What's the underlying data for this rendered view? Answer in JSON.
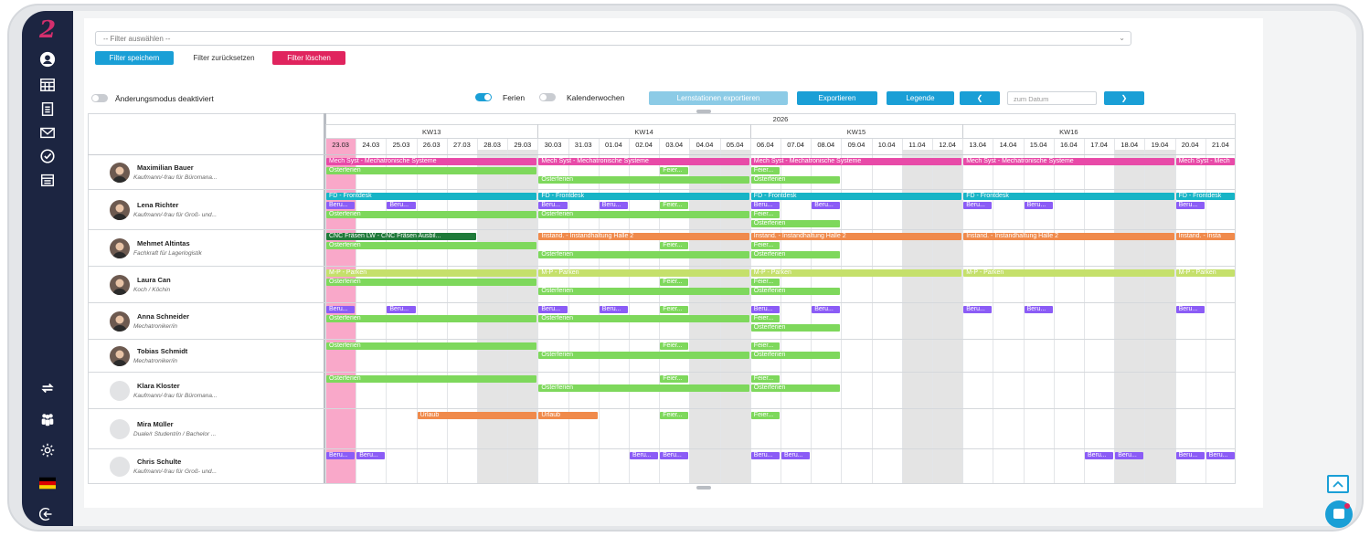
{
  "filter": {
    "placeholder": "-- Filter auswählen --",
    "save_label": "Filter speichern",
    "reset_label": "Filter zurücksetzen",
    "delete_label": "Filter löschen"
  },
  "toolbar": {
    "change_mode_label": "Änderungsmodus deaktiviert",
    "ferien_label": "Ferien",
    "kalenderwochen_label": "Kalenderwochen",
    "export_stations_label": "Lernstationen exportieren",
    "export_label": "Exportieren",
    "legend_label": "Legende",
    "prev_label": "❮",
    "date_placeholder": "zum Datum",
    "next_label": "❯"
  },
  "calendar": {
    "year": "2026",
    "weeks": [
      "KW13",
      "KW14",
      "KW15",
      "KW16"
    ],
    "days": [
      "23.03",
      "24.03",
      "25.03",
      "26.03",
      "27.03",
      "28.03",
      "29.03",
      "30.03",
      "31.03",
      "01.04",
      "02.04",
      "03.04",
      "04.04",
      "05.04",
      "06.04",
      "07.04",
      "08.04",
      "09.04",
      "10.04",
      "11.04",
      "12.04",
      "13.04",
      "14.04",
      "15.04",
      "16.04",
      "17.04",
      "18.04",
      "19.04",
      "20.04",
      "21.04"
    ],
    "weekend_indices": [
      5,
      6,
      12,
      13,
      19,
      20,
      26,
      27
    ],
    "today_index": 0
  },
  "people": [
    {
      "name": "Maximilian Bauer",
      "role": "Kaufmann/-frau für Büromana...",
      "photo": true
    },
    {
      "name": "Lena Richter",
      "role": "Kaufmann/-frau für Groß- und...",
      "photo": true
    },
    {
      "name": "Mehmet Altintas",
      "role": "Fachkraft für Lagerlogistik",
      "photo": true
    },
    {
      "name": "Laura Can",
      "role": "Koch / Köchin",
      "photo": true
    },
    {
      "name": "Anna Schneider",
      "role": "Mechatroniker/in",
      "photo": true
    },
    {
      "name": "Tobias Schmidt",
      "role": "Mechatroniker/in",
      "photo": true
    },
    {
      "name": "Klara Kloster",
      "role": "Kaufmann/-frau für Büromana...",
      "photo": false
    },
    {
      "name": "Mira Müller",
      "role": "Duale/r Student/in / Bachelor ...",
      "photo": false
    },
    {
      "name": "Chris Schulte",
      "role": "Kaufmann/-frau für Groß- und...",
      "photo": false
    }
  ],
  "events": [
    {
      "row": 0,
      "lane": 0,
      "start": 0,
      "end": 7,
      "label": "Mech Syst - Mechatronische Systeme",
      "color": "#e84aa8"
    },
    {
      "row": 0,
      "lane": 0,
      "start": 7,
      "end": 14,
      "label": "Mech Syst - Mechatronische Systeme",
      "color": "#e84aa8"
    },
    {
      "row": 0,
      "lane": 0,
      "start": 14,
      "end": 21,
      "label": "Mech Syst - Mechatronische Systeme",
      "color": "#e84aa8"
    },
    {
      "row": 0,
      "lane": 0,
      "start": 21,
      "end": 28,
      "label": "Mech Syst - Mechatronische Systeme",
      "color": "#e84aa8"
    },
    {
      "row": 0,
      "lane": 0,
      "start": 28,
      "end": 30,
      "label": "Mech Syst - Mech",
      "color": "#e84aa8"
    },
    {
      "row": 0,
      "lane": 1,
      "start": 0,
      "end": 7,
      "label": "Osterferien",
      "color": "#7ed85c"
    },
    {
      "row": 0,
      "lane": 1,
      "start": 11,
      "end": 12,
      "label": "Feier...",
      "color": "#7ed85c"
    },
    {
      "row": 0,
      "lane": 1,
      "start": 14,
      "end": 15,
      "label": "Feier...",
      "color": "#7ed85c"
    },
    {
      "row": 0,
      "lane": 2,
      "start": 7,
      "end": 14,
      "label": "Osterferien",
      "color": "#7ed85c"
    },
    {
      "row": 0,
      "lane": 2,
      "start": 14,
      "end": 17,
      "label": "Osterferien",
      "color": "#7ed85c"
    },
    {
      "row": 1,
      "lane": 0,
      "start": 0,
      "end": 7,
      "label": "FD - Frontdesk",
      "color": "#17b4c6"
    },
    {
      "row": 1,
      "lane": 0,
      "start": 7,
      "end": 14,
      "label": "FD - Frontdesk",
      "color": "#17b4c6"
    },
    {
      "row": 1,
      "lane": 0,
      "start": 14,
      "end": 21,
      "label": "FD - Frontdesk",
      "color": "#17b4c6"
    },
    {
      "row": 1,
      "lane": 0,
      "start": 21,
      "end": 28,
      "label": "FD - Frontdesk",
      "color": "#17b4c6"
    },
    {
      "row": 1,
      "lane": 0,
      "start": 28,
      "end": 30,
      "label": "FD - Frontdesk",
      "color": "#17b4c6"
    },
    {
      "row": 1,
      "lane": 1,
      "start": 0,
      "end": 1,
      "label": "Beru...",
      "color": "#8b5cf6"
    },
    {
      "row": 1,
      "lane": 1,
      "start": 2,
      "end": 3,
      "label": "Beru...",
      "color": "#8b5cf6"
    },
    {
      "row": 1,
      "lane": 1,
      "start": 7,
      "end": 8,
      "label": "Beru...",
      "color": "#8b5cf6"
    },
    {
      "row": 1,
      "lane": 1,
      "start": 9,
      "end": 10,
      "label": "Beru...",
      "color": "#8b5cf6"
    },
    {
      "row": 1,
      "lane": 1,
      "start": 11,
      "end": 12,
      "label": "Feier...",
      "color": "#7ed85c"
    },
    {
      "row": 1,
      "lane": 1,
      "start": 14,
      "end": 15,
      "label": "Beru...",
      "color": "#8b5cf6"
    },
    {
      "row": 1,
      "lane": 1,
      "start": 16,
      "end": 17,
      "label": "Beru...",
      "color": "#8b5cf6"
    },
    {
      "row": 1,
      "lane": 1,
      "start": 21,
      "end": 22,
      "label": "Beru...",
      "color": "#8b5cf6"
    },
    {
      "row": 1,
      "lane": 1,
      "start": 23,
      "end": 24,
      "label": "Beru...",
      "color": "#8b5cf6"
    },
    {
      "row": 1,
      "lane": 1,
      "start": 28,
      "end": 29,
      "label": "Beru...",
      "color": "#8b5cf6"
    },
    {
      "row": 1,
      "lane": 2,
      "start": 0,
      "end": 7,
      "label": "Osterferien",
      "color": "#7ed85c"
    },
    {
      "row": 1,
      "lane": 2,
      "start": 7,
      "end": 14,
      "label": "Osterferien",
      "color": "#7ed85c"
    },
    {
      "row": 1,
      "lane": 2,
      "start": 14,
      "end": 15,
      "label": "Feier...",
      "color": "#7ed85c"
    },
    {
      "row": 1,
      "lane": 3,
      "start": 14,
      "end": 17,
      "label": "Osterferien",
      "color": "#7ed85c"
    },
    {
      "row": 2,
      "lane": 0,
      "start": 0,
      "end": 5,
      "label": "CNC Fräsen LW - CNC Fräsen Ausbil...",
      "color": "#1f7a3a"
    },
    {
      "row": 2,
      "lane": 0,
      "start": 7,
      "end": 14,
      "label": "Instand. - Instandhaltung Halle 2",
      "color": "#f08a4b"
    },
    {
      "row": 2,
      "lane": 0,
      "start": 14,
      "end": 21,
      "label": "Instand. - Instandhaltung Halle 2",
      "color": "#f08a4b"
    },
    {
      "row": 2,
      "lane": 0,
      "start": 21,
      "end": 28,
      "label": "Instand. - Instandhaltung Halle 2",
      "color": "#f08a4b"
    },
    {
      "row": 2,
      "lane": 0,
      "start": 28,
      "end": 30,
      "label": "Instand. - Insta",
      "color": "#f08a4b"
    },
    {
      "row": 2,
      "lane": 1,
      "start": 0,
      "end": 7,
      "label": "Osterferien",
      "color": "#7ed85c"
    },
    {
      "row": 2,
      "lane": 1,
      "start": 11,
      "end": 12,
      "label": "Feier...",
      "color": "#7ed85c"
    },
    {
      "row": 2,
      "lane": 1,
      "start": 14,
      "end": 15,
      "label": "Feier...",
      "color": "#7ed85c"
    },
    {
      "row": 2,
      "lane": 2,
      "start": 7,
      "end": 14,
      "label": "Osterferien",
      "color": "#7ed85c"
    },
    {
      "row": 2,
      "lane": 2,
      "start": 14,
      "end": 17,
      "label": "Osterferien",
      "color": "#7ed85c"
    },
    {
      "row": 3,
      "lane": 0,
      "start": 0,
      "end": 7,
      "label": "M-P - Parken",
      "color": "#c5e06b"
    },
    {
      "row": 3,
      "lane": 0,
      "start": 7,
      "end": 14,
      "label": "M-P - Parken",
      "color": "#c5e06b"
    },
    {
      "row": 3,
      "lane": 0,
      "start": 14,
      "end": 21,
      "label": "M-P - Parken",
      "color": "#c5e06b"
    },
    {
      "row": 3,
      "lane": 0,
      "start": 21,
      "end": 28,
      "label": "M-P - Parken",
      "color": "#c5e06b"
    },
    {
      "row": 3,
      "lane": 0,
      "start": 28,
      "end": 30,
      "label": "M-P - Parken",
      "color": "#c5e06b"
    },
    {
      "row": 3,
      "lane": 1,
      "start": 0,
      "end": 7,
      "label": "Osterferien",
      "color": "#7ed85c"
    },
    {
      "row": 3,
      "lane": 1,
      "start": 11,
      "end": 12,
      "label": "Feier...",
      "color": "#7ed85c"
    },
    {
      "row": 3,
      "lane": 1,
      "start": 14,
      "end": 15,
      "label": "Feier...",
      "color": "#7ed85c"
    },
    {
      "row": 3,
      "lane": 2,
      "start": 7,
      "end": 14,
      "label": "Osterferien",
      "color": "#7ed85c"
    },
    {
      "row": 3,
      "lane": 2,
      "start": 14,
      "end": 17,
      "label": "Osterferien",
      "color": "#7ed85c"
    },
    {
      "row": 4,
      "lane": 0,
      "start": 0,
      "end": 1,
      "label": "Beru...",
      "color": "#8b5cf6"
    },
    {
      "row": 4,
      "lane": 0,
      "start": 2,
      "end": 3,
      "label": "Beru...",
      "color": "#8b5cf6"
    },
    {
      "row": 4,
      "lane": 0,
      "start": 7,
      "end": 8,
      "label": "Beru...",
      "color": "#8b5cf6"
    },
    {
      "row": 4,
      "lane": 0,
      "start": 9,
      "end": 10,
      "label": "Beru...",
      "color": "#8b5cf6"
    },
    {
      "row": 4,
      "lane": 0,
      "start": 11,
      "end": 12,
      "label": "Feier...",
      "color": "#7ed85c"
    },
    {
      "row": 4,
      "lane": 0,
      "start": 14,
      "end": 15,
      "label": "Beru...",
      "color": "#8b5cf6"
    },
    {
      "row": 4,
      "lane": 0,
      "start": 16,
      "end": 17,
      "label": "Beru...",
      "color": "#8b5cf6"
    },
    {
      "row": 4,
      "lane": 0,
      "start": 21,
      "end": 22,
      "label": "Beru...",
      "color": "#8b5cf6"
    },
    {
      "row": 4,
      "lane": 0,
      "start": 23,
      "end": 24,
      "label": "Beru...",
      "color": "#8b5cf6"
    },
    {
      "row": 4,
      "lane": 0,
      "start": 28,
      "end": 29,
      "label": "Beru...",
      "color": "#8b5cf6"
    },
    {
      "row": 4,
      "lane": 1,
      "start": 0,
      "end": 7,
      "label": "Osterferien",
      "color": "#7ed85c"
    },
    {
      "row": 4,
      "lane": 1,
      "start": 7,
      "end": 14,
      "label": "Osterferien",
      "color": "#7ed85c"
    },
    {
      "row": 4,
      "lane": 1,
      "start": 14,
      "end": 15,
      "label": "Feier...",
      "color": "#7ed85c"
    },
    {
      "row": 4,
      "lane": 2,
      "start": 14,
      "end": 17,
      "label": "Osterferien",
      "color": "#7ed85c"
    },
    {
      "row": 5,
      "lane": 0,
      "start": 0,
      "end": 7,
      "label": "Osterferien",
      "color": "#7ed85c"
    },
    {
      "row": 5,
      "lane": 0,
      "start": 11,
      "end": 12,
      "label": "Feier...",
      "color": "#7ed85c"
    },
    {
      "row": 5,
      "lane": 0,
      "start": 14,
      "end": 15,
      "label": "Feier...",
      "color": "#7ed85c"
    },
    {
      "row": 5,
      "lane": 1,
      "start": 7,
      "end": 14,
      "label": "Osterferien",
      "color": "#7ed85c"
    },
    {
      "row": 5,
      "lane": 1,
      "start": 14,
      "end": 17,
      "label": "Osterferien",
      "color": "#7ed85c"
    },
    {
      "row": 6,
      "lane": 0,
      "start": 0,
      "end": 7,
      "label": "Osterferien",
      "color": "#7ed85c"
    },
    {
      "row": 6,
      "lane": 0,
      "start": 11,
      "end": 12,
      "label": "Feier...",
      "color": "#7ed85c"
    },
    {
      "row": 6,
      "lane": 0,
      "start": 14,
      "end": 15,
      "label": "Feier...",
      "color": "#7ed85c"
    },
    {
      "row": 6,
      "lane": 1,
      "start": 7,
      "end": 14,
      "label": "Osterferien",
      "color": "#7ed85c"
    },
    {
      "row": 6,
      "lane": 1,
      "start": 14,
      "end": 17,
      "label": "Osterferien",
      "color": "#7ed85c"
    },
    {
      "row": 7,
      "lane": 0,
      "start": 3,
      "end": 7,
      "label": "Urlaub",
      "color": "#f08a4b"
    },
    {
      "row": 7,
      "lane": 0,
      "start": 7,
      "end": 9,
      "label": "Urlaub",
      "color": "#f08a4b"
    },
    {
      "row": 7,
      "lane": 0,
      "start": 11,
      "end": 12,
      "label": "Feier...",
      "color": "#7ed85c"
    },
    {
      "row": 7,
      "lane": 0,
      "start": 14,
      "end": 15,
      "label": "Feier...",
      "color": "#7ed85c"
    },
    {
      "row": 8,
      "lane": 0,
      "start": 0,
      "end": 1,
      "label": "Beru...",
      "color": "#8b5cf6"
    },
    {
      "row": 8,
      "lane": 0,
      "start": 1,
      "end": 2,
      "label": "Beru...",
      "color": "#8b5cf6"
    },
    {
      "row": 8,
      "lane": 0,
      "start": 10,
      "end": 11,
      "label": "Beru...",
      "color": "#8b5cf6"
    },
    {
      "row": 8,
      "lane": 0,
      "start": 11,
      "end": 12,
      "label": "Beru...",
      "color": "#8b5cf6"
    },
    {
      "row": 8,
      "lane": 0,
      "start": 14,
      "end": 15,
      "label": "Beru...",
      "color": "#8b5cf6"
    },
    {
      "row": 8,
      "lane": 0,
      "start": 15,
      "end": 16,
      "label": "Beru...",
      "color": "#8b5cf6"
    },
    {
      "row": 8,
      "lane": 0,
      "start": 25,
      "end": 26,
      "label": "Beru...",
      "color": "#8b5cf6"
    },
    {
      "row": 8,
      "lane": 0,
      "start": 26,
      "end": 27,
      "label": "Beru...",
      "color": "#8b5cf6"
    },
    {
      "row": 8,
      "lane": 0,
      "start": 28,
      "end": 29,
      "label": "Beru...",
      "color": "#8b5cf6"
    },
    {
      "row": 8,
      "lane": 0,
      "start": 29,
      "end": 30,
      "label": "Beru...",
      "color": "#8b5cf6"
    }
  ],
  "colors": {
    "sidebar": "#1c2541",
    "accent": "#1a9fd6",
    "delete": "#e0245e",
    "today": "#f9a8c9",
    "weekend": "#e4e4e4",
    "ferien": "#7ed85c"
  },
  "sidebar_icons": [
    "user-icon",
    "calendar-grid-icon",
    "checklist-icon",
    "mail-icon",
    "check-circle-icon",
    "calendar-icon",
    "swap-icon",
    "group-icon",
    "gear-icon",
    "flag-de-icon",
    "logout-icon"
  ]
}
